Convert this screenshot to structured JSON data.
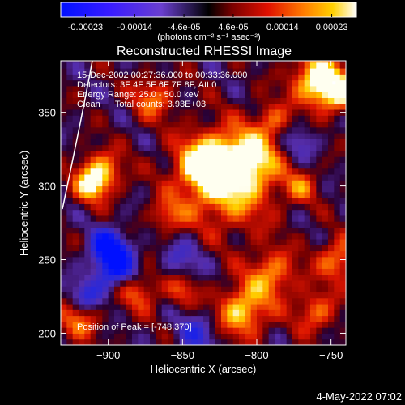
{
  "chart_data": {
    "type": "heatmap",
    "title": "Reconstructed RHESSI Image",
    "xlabel": "Heliocentric X (arcsec)",
    "ylabel": "Heliocentric Y (arcsec)",
    "x_ticks": [
      -900,
      -850,
      -800,
      -750
    ],
    "y_ticks": [
      200,
      250,
      300,
      350
    ],
    "xlim": [
      -932,
      -740
    ],
    "ylim": [
      192,
      385
    ],
    "grid": false,
    "colorbar": {
      "ticks": [
        "-0.00023",
        "-0.00014",
        "-4.6e-05",
        "4.6e-05",
        "0.00014",
        "0.00023"
      ],
      "range": [
        -0.00023,
        0.00023
      ],
      "unit_label": "(photons cm⁻² s⁻¹ asec⁻²)"
    },
    "annotations": [
      "15-Dec-2002 00:27:36.000 to 00:33:36.000",
      "Detectors: 3F 4F 5F 6F 7F 8F, Att 0",
      "Energy Range: 25.0 - 50.0 keV",
      "Clean      Total counts: 3.93E+03"
    ],
    "peak_label": "Position of Peak = [-748,370]",
    "peak_position": [
      -748,
      370
    ],
    "limb_line": true
  },
  "footer": {
    "date": "4-May-2022 07:02"
  }
}
